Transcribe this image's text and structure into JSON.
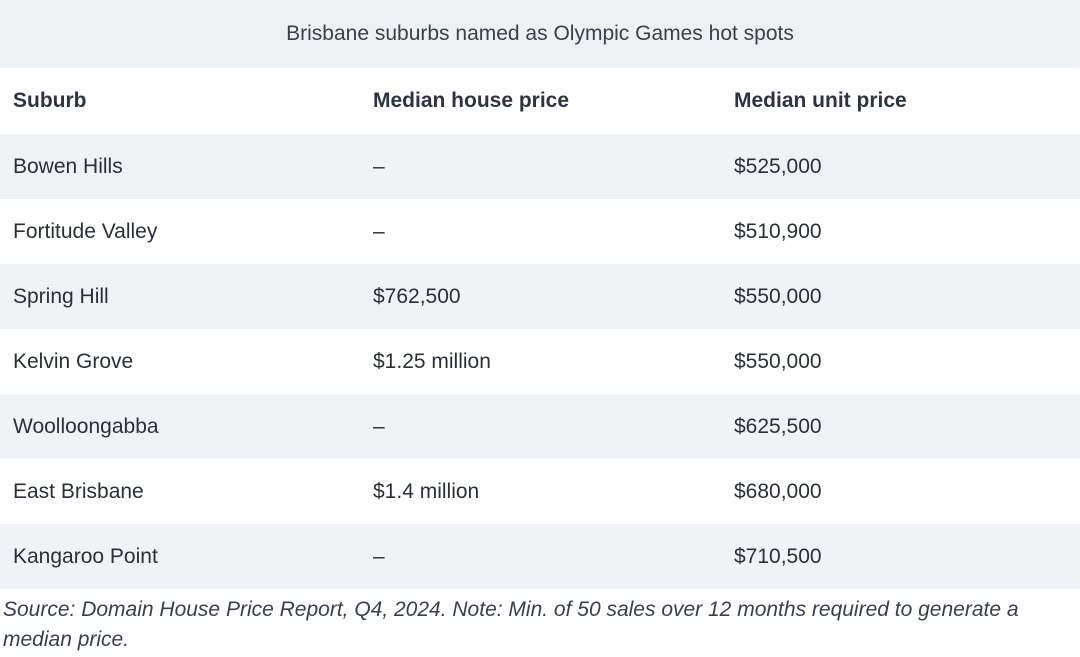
{
  "table": {
    "caption": "Brisbane suburbs named as Olympic Games hot spots",
    "headers": [
      "Suburb",
      "Median house price",
      "Median unit price"
    ],
    "rows": [
      [
        "Bowen Hills",
        "–",
        "$525,000"
      ],
      [
        "Fortitude Valley",
        "–",
        "$510,900"
      ],
      [
        "Spring Hill",
        "$762,500",
        "$550,000"
      ],
      [
        "Kelvin Grove",
        "$1.25 million",
        "$550,000"
      ],
      [
        "Woolloongabba",
        "–",
        "$625,500"
      ],
      [
        "East Brisbane",
        "$1.4 million",
        "$680,000"
      ],
      [
        "Kangaroo Point",
        "–",
        "$710,500"
      ]
    ],
    "footnote": "Source: Domain House Price Report, Q4, 2024. Note: Min. of 50 sales over 12 months required to generate a median price."
  },
  "colors": {
    "shaded_row": "#f0f2f5",
    "caption_bg": "#eef1f4",
    "text": "#2b2f3a"
  }
}
